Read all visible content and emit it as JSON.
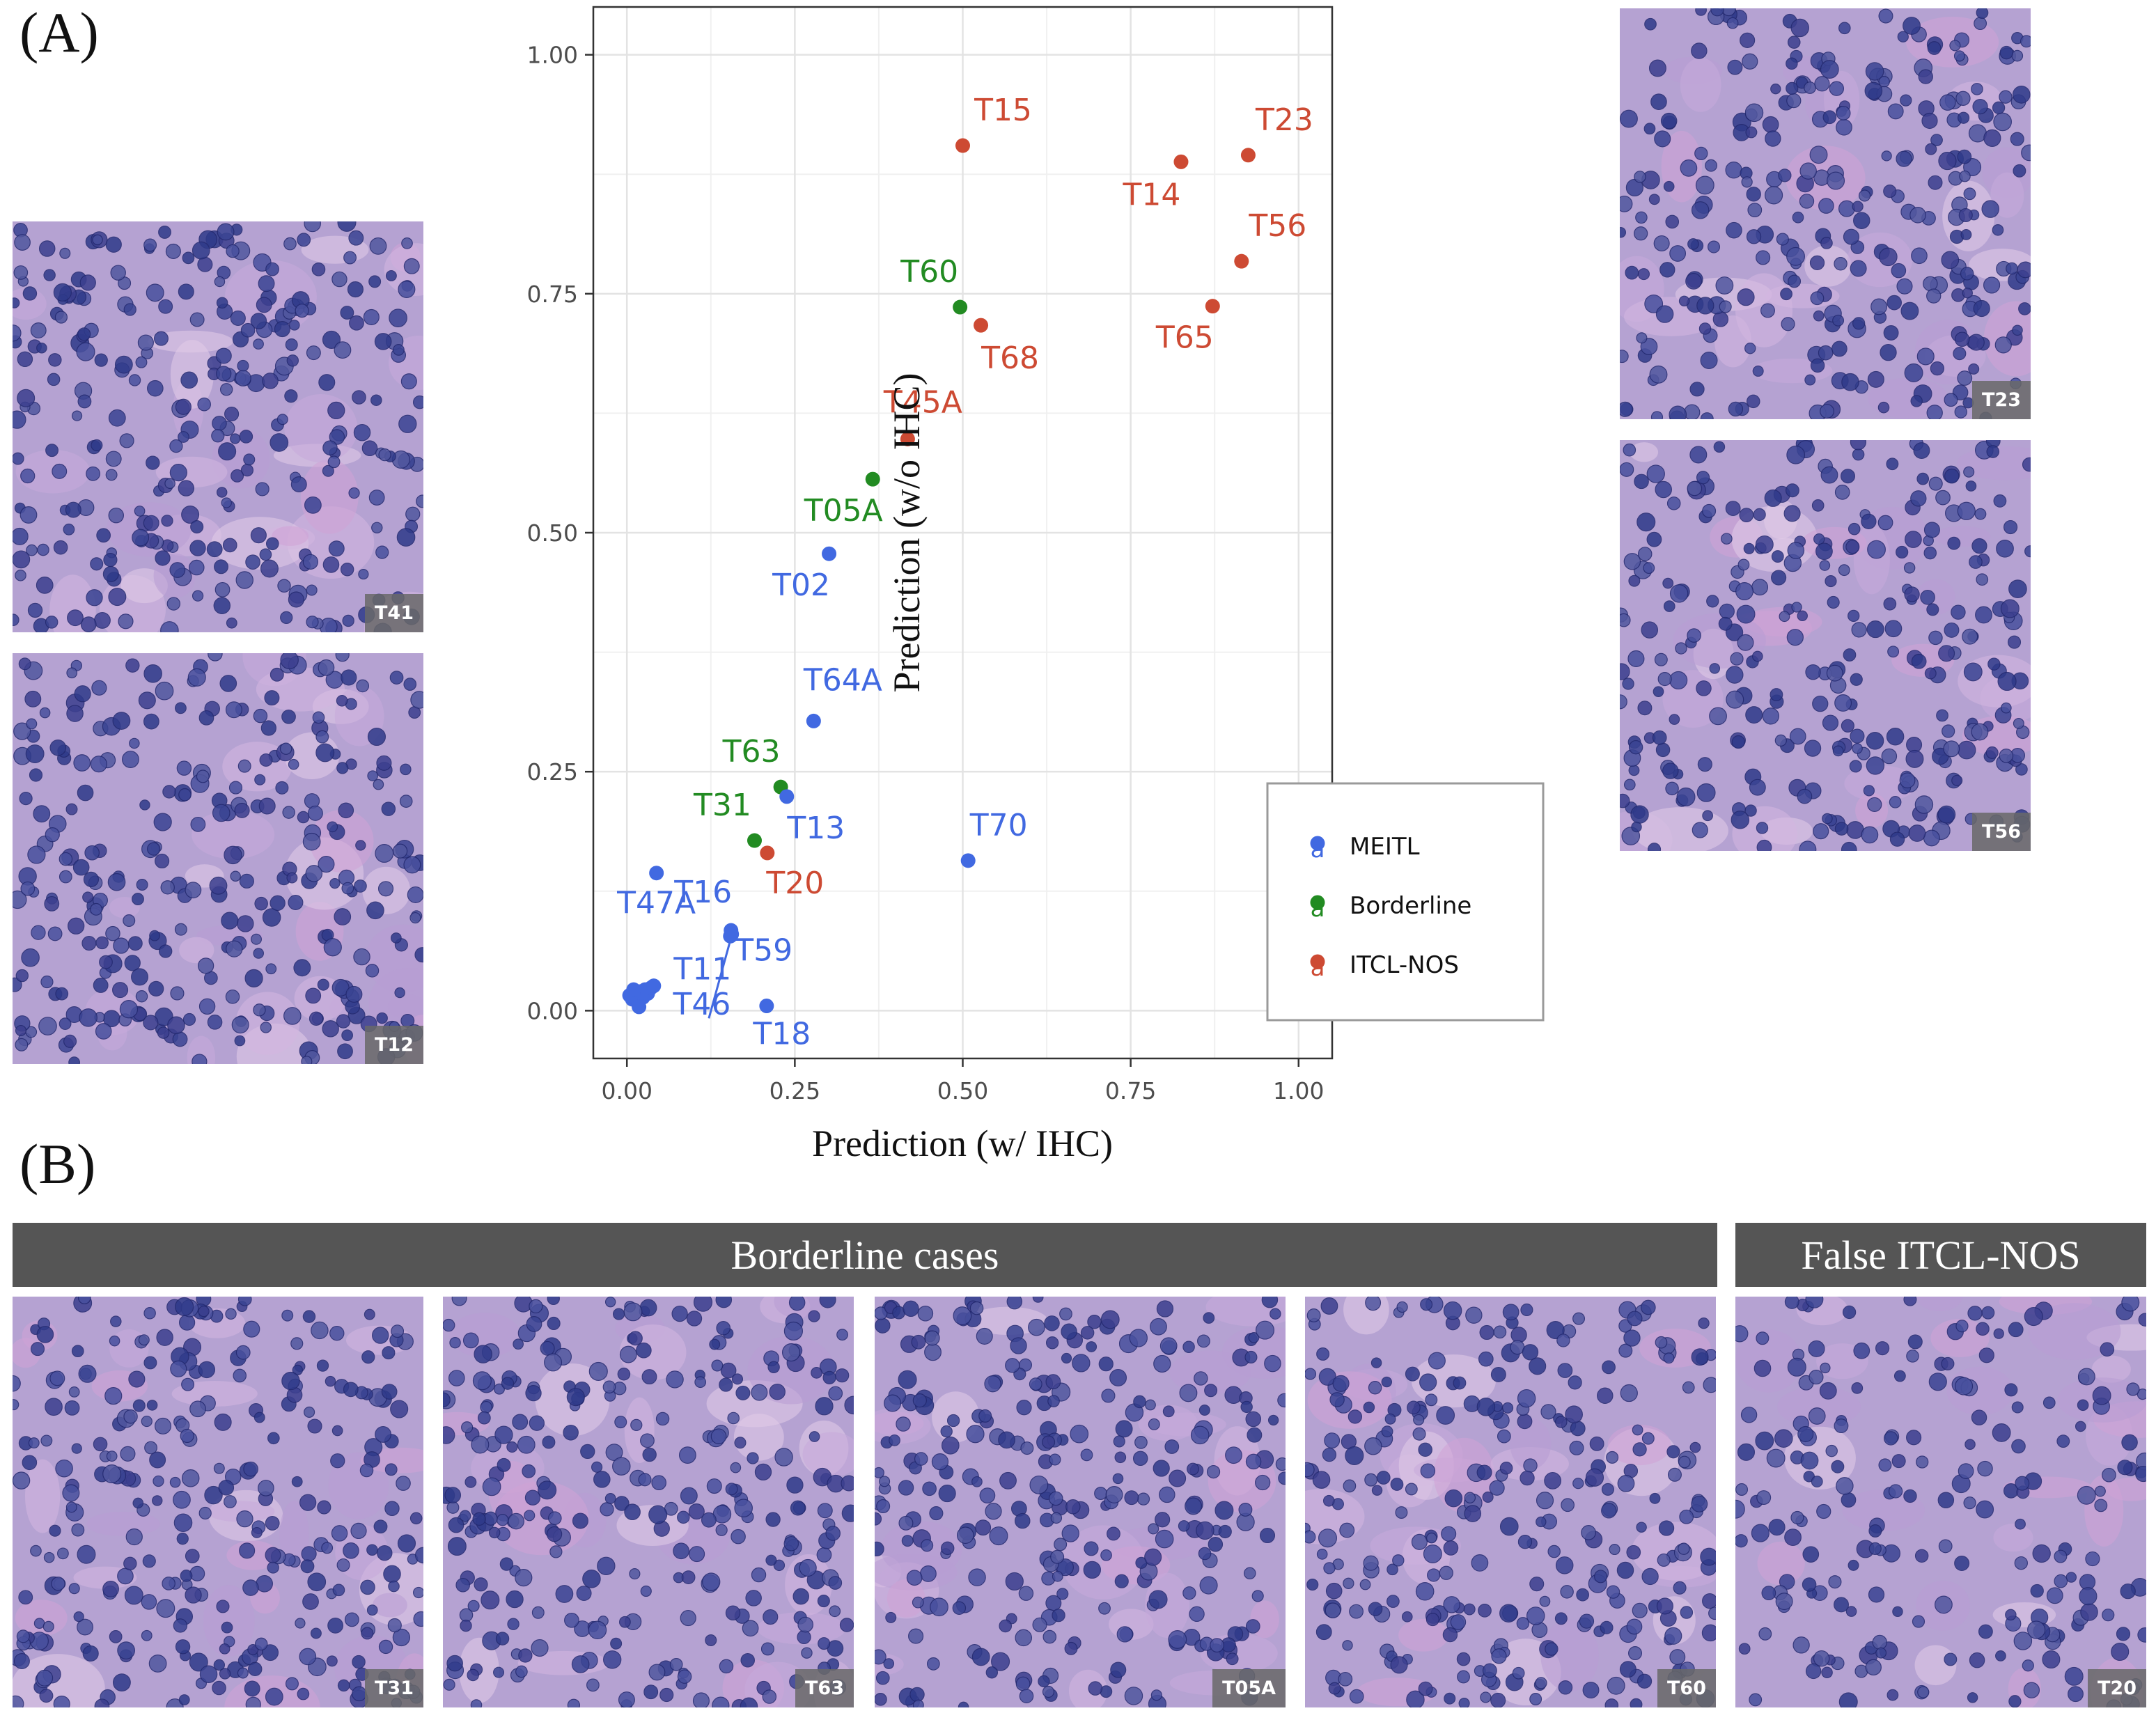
{
  "panels": {
    "a_label": "(A)",
    "b_label": "(B)"
  },
  "colors": {
    "meitl": "#4169e1",
    "borderline": "#228b22",
    "itcl_nos": "#cd4a33",
    "band": "#555555",
    "tissue_bg": "#b5a2d2",
    "nucleus": "#3a4493"
  },
  "images": {
    "left": [
      {
        "id": "T41",
        "label": "T41"
      },
      {
        "id": "T12",
        "label": "T12"
      }
    ],
    "right": [
      {
        "id": "T23",
        "label": "T23"
      },
      {
        "id": "T56",
        "label": "T56"
      }
    ],
    "bottom": [
      {
        "id": "T31",
        "label": "T31"
      },
      {
        "id": "T63",
        "label": "T63"
      },
      {
        "id": "T05A",
        "label": "T05A"
      },
      {
        "id": "T60",
        "label": "T60"
      },
      {
        "id": "T20",
        "label": "T20"
      }
    ]
  },
  "section_headers": {
    "borderline": "Borderline cases",
    "false_itcl": "False ITCL-NOS"
  },
  "chart_data": {
    "type": "scatter",
    "xlabel": "Prediction (w/ IHC)",
    "ylabel": "Prediction (w/o IHC)",
    "xlim": [
      -0.05,
      1.05
    ],
    "ylim": [
      -0.05,
      1.05
    ],
    "xticks": [
      "0.00",
      "0.25",
      "0.50",
      "0.75",
      "1.00"
    ],
    "yticks": [
      "0.00",
      "0.25",
      "0.50",
      "0.75",
      "1.00"
    ],
    "grid": true,
    "legend_position": "bottom-right",
    "legend": [
      {
        "name": "MEITL",
        "group": "meitl",
        "glyph": "a"
      },
      {
        "name": "Borderline",
        "group": "borderline",
        "glyph": "a"
      },
      {
        "name": "ITCL-NOS",
        "group": "itcl_nos",
        "glyph": "a"
      }
    ],
    "points": [
      {
        "label": "T15",
        "x": 0.5,
        "y": 0.905,
        "group": "itcl_nos"
      },
      {
        "label": "T14",
        "x": 0.825,
        "y": 0.888,
        "group": "itcl_nos"
      },
      {
        "label": "T23",
        "x": 0.925,
        "y": 0.895,
        "group": "itcl_nos"
      },
      {
        "label": "T56",
        "x": 0.915,
        "y": 0.784,
        "group": "itcl_nos"
      },
      {
        "label": "T65",
        "x": 0.872,
        "y": 0.737,
        "group": "itcl_nos"
      },
      {
        "label": "T68",
        "x": 0.527,
        "y": 0.717,
        "group": "itcl_nos"
      },
      {
        "label": "T45A",
        "x": 0.418,
        "y": 0.598,
        "group": "itcl_nos"
      },
      {
        "label": "T20",
        "x": 0.209,
        "y": 0.165,
        "group": "itcl_nos"
      },
      {
        "label": "T60",
        "x": 0.496,
        "y": 0.736,
        "group": "borderline"
      },
      {
        "label": "T05A",
        "x": 0.366,
        "y": 0.556,
        "group": "borderline"
      },
      {
        "label": "T63",
        "x": 0.229,
        "y": 0.234,
        "group": "borderline"
      },
      {
        "label": "T31",
        "x": 0.19,
        "y": 0.178,
        "group": "borderline"
      },
      {
        "label": "T02",
        "x": 0.301,
        "y": 0.478,
        "group": "meitl"
      },
      {
        "label": "T64A",
        "x": 0.278,
        "y": 0.303,
        "group": "meitl"
      },
      {
        "label": "T13",
        "x": 0.238,
        "y": 0.224,
        "group": "meitl"
      },
      {
        "label": "T70",
        "x": 0.508,
        "y": 0.157,
        "group": "meitl"
      },
      {
        "label": "T47A",
        "x": 0.044,
        "y": 0.144,
        "group": "meitl"
      },
      {
        "label": "T16",
        "x": 0.155,
        "y": 0.084,
        "group": "meitl"
      },
      {
        "label": "T11",
        "x": 0.154,
        "y": 0.078,
        "group": "meitl"
      },
      {
        "label": "T59",
        "x": 0.156,
        "y": 0.08,
        "group": "meitl"
      },
      {
        "label": "T18",
        "x": 0.208,
        "y": 0.005,
        "group": "meitl"
      },
      {
        "label": "T46",
        "x": 0.008,
        "y": 0.012,
        "group": "meitl"
      },
      {
        "label": "",
        "x": 0.012,
        "y": 0.018,
        "group": "meitl"
      },
      {
        "label": "",
        "x": 0.017,
        "y": 0.008,
        "group": "meitl"
      },
      {
        "label": "",
        "x": 0.02,
        "y": 0.02,
        "group": "meitl"
      },
      {
        "label": "",
        "x": 0.024,
        "y": 0.014,
        "group": "meitl"
      },
      {
        "label": "",
        "x": 0.027,
        "y": 0.022,
        "group": "meitl"
      },
      {
        "label": "",
        "x": 0.031,
        "y": 0.018,
        "group": "meitl"
      },
      {
        "label": "",
        "x": 0.036,
        "y": 0.024,
        "group": "meitl"
      },
      {
        "label": "",
        "x": 0.04,
        "y": 0.026,
        "group": "meitl"
      },
      {
        "label": "",
        "x": 0.018,
        "y": 0.004,
        "group": "meitl"
      },
      {
        "label": "",
        "x": 0.004,
        "y": 0.016,
        "group": "meitl"
      },
      {
        "label": "",
        "x": 0.01,
        "y": 0.022,
        "group": "meitl"
      }
    ]
  }
}
